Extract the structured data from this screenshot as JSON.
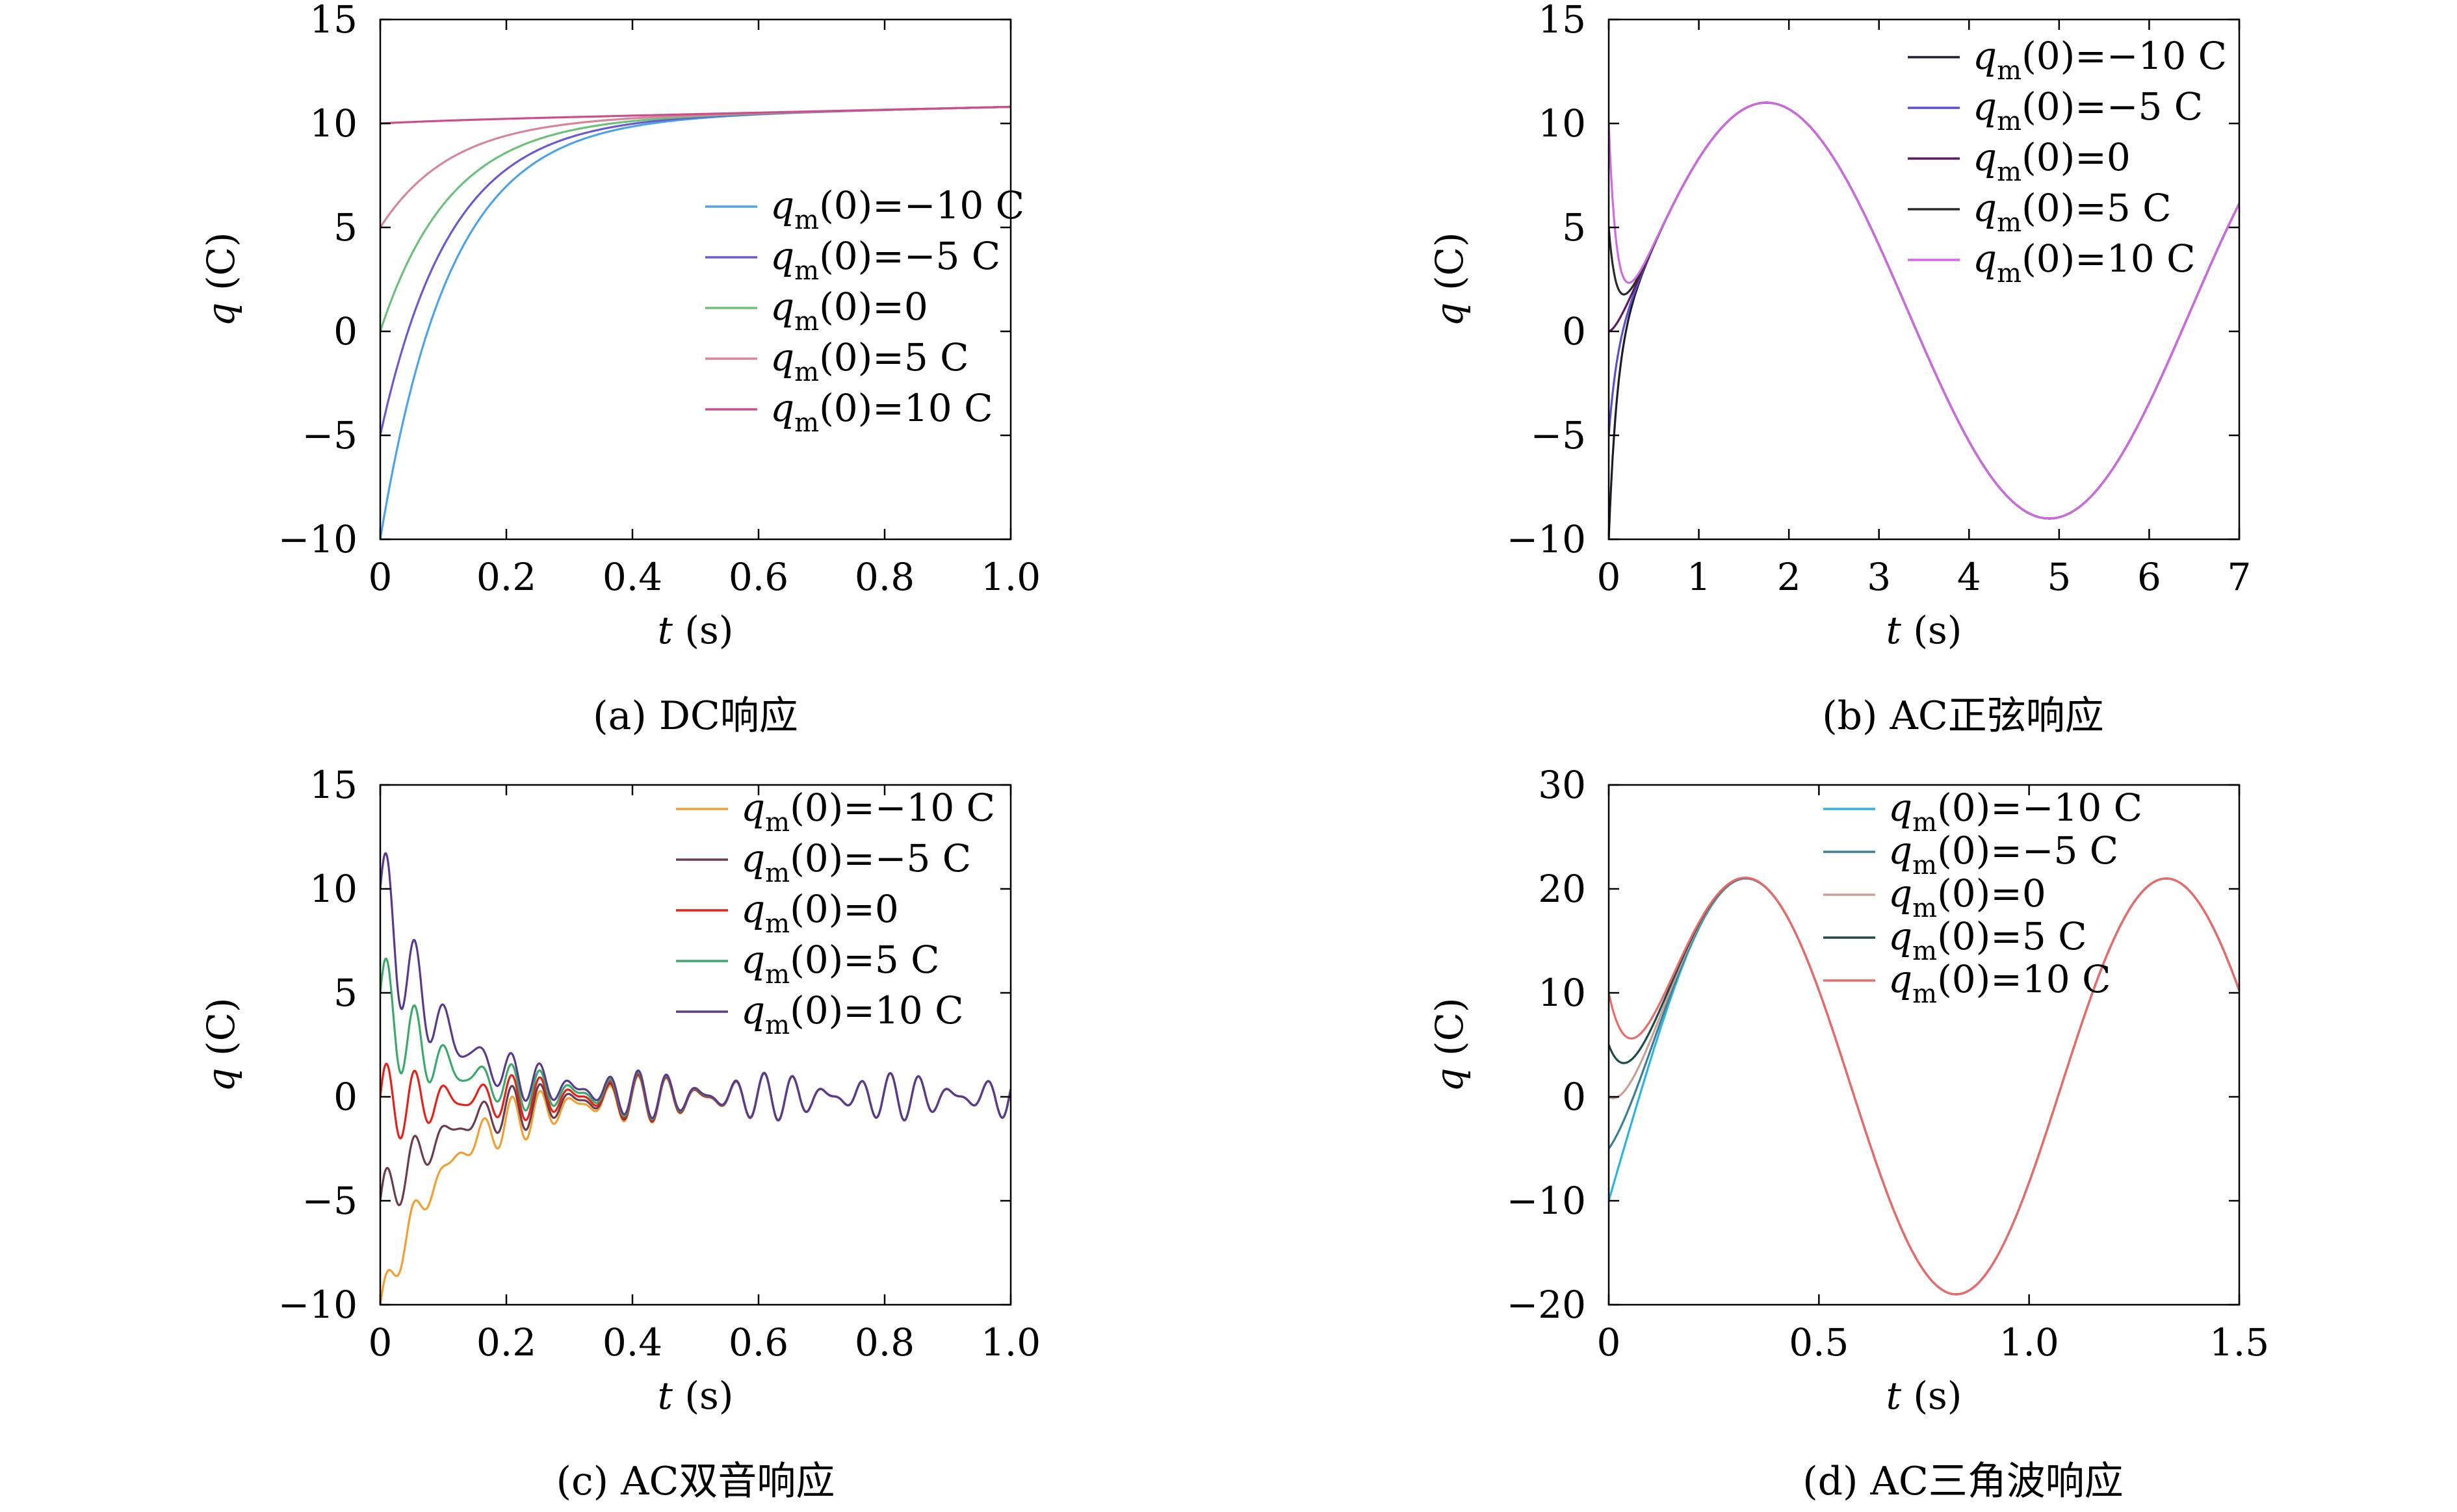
{
  "chart_data": [
    {
      "id": "a",
      "type": "line",
      "caption": "(a) DC响应",
      "xlabel_var": "t",
      "xlabel_unit": " (s)",
      "ylabel_var": "q",
      "ylabel_unit": " (C)",
      "xlim": [
        0,
        1.0
      ],
      "ylim": [
        -10,
        15
      ],
      "xticks": [
        0,
        0.2,
        0.4,
        0.6,
        0.8,
        1.0
      ],
      "xtick_labels": [
        "0",
        "0.2",
        "0.4",
        "0.6",
        "0.8",
        "1.0"
      ],
      "yticks": [
        -10,
        -5,
        0,
        5,
        10,
        15
      ],
      "ytick_labels": [
        "−10",
        "−5",
        "0",
        "5",
        "10",
        "15"
      ],
      "grid": false,
      "legend_position": "center-right",
      "model": "dc",
      "series": [
        {
          "name": "=−10 C",
          "q0": -10,
          "color": "#4ea3e6",
          "x": [
            0,
            0.05,
            0.1,
            0.15,
            0.2,
            0.3,
            0.4,
            0.6,
            0.8,
            1.0
          ],
          "y": [
            -10,
            -3.2,
            1.6,
            4.6,
            6.6,
            8.8,
            9.8,
            10.4,
            10.6,
            10.8
          ]
        },
        {
          "name": "=−5 C",
          "q0": -5,
          "color": "#6a5acd",
          "x": [
            0,
            0.05,
            0.1,
            0.15,
            0.2,
            0.3,
            0.4,
            0.6,
            0.8,
            1.0
          ],
          "y": [
            -5,
            0.4,
            4.0,
            6.4,
            7.9,
            9.5,
            10.1,
            10.5,
            10.6,
            10.8
          ]
        },
        {
          "name": "=0",
          "q0": 0,
          "color": "#6cc07a",
          "x": [
            0,
            0.05,
            0.1,
            0.15,
            0.2,
            0.3,
            0.4,
            0.6,
            0.8,
            1.0
          ],
          "y": [
            0,
            4.0,
            6.6,
            8.2,
            9.1,
            10.0,
            10.3,
            10.6,
            10.7,
            10.8
          ]
        },
        {
          "name": "=5 C",
          "q0": 5,
          "color": "#d4869a",
          "x": [
            0,
            0.05,
            0.1,
            0.15,
            0.2,
            0.3,
            0.4,
            0.6,
            0.8,
            1.0
          ],
          "y": [
            5,
            7.6,
            9.1,
            9.8,
            10.1,
            10.4,
            10.5,
            10.6,
            10.7,
            10.8
          ]
        },
        {
          "name": "=10 C",
          "q0": 10,
          "color": "#cc4f8c",
          "x": [
            0,
            0.2,
            0.4,
            0.6,
            0.8,
            1.0
          ],
          "y": [
            10.1,
            10.25,
            10.4,
            10.55,
            10.65,
            10.8
          ]
        }
      ]
    },
    {
      "id": "b",
      "type": "line",
      "caption": "(b) AC正弦响应",
      "xlabel_var": "t",
      "xlabel_unit": " (s)",
      "ylabel_var": "q",
      "ylabel_unit": " (C)",
      "xlim": [
        0,
        7
      ],
      "ylim": [
        -10,
        15
      ],
      "xticks": [
        0,
        1,
        2,
        3,
        4,
        5,
        6,
        7
      ],
      "xtick_labels": [
        "0",
        "1",
        "2",
        "3",
        "4",
        "5",
        "6",
        "7"
      ],
      "yticks": [
        -10,
        -5,
        0,
        5,
        10,
        15
      ],
      "ytick_labels": [
        "−10",
        "−5",
        "0",
        "5",
        "10",
        "15"
      ],
      "grid": false,
      "legend_position": "top-right",
      "model": "sine",
      "series": [
        {
          "name": "=−10 C",
          "q0": -10,
          "color": "#1c1c2a",
          "x": [
            0,
            0.1,
            0.25,
            0.5,
            1.0,
            1.75,
            2.5,
            3.5,
            4.85,
            6.0,
            7.0
          ],
          "y": [
            -10,
            -2.5,
            1.5,
            4.2,
            8.2,
            10.9,
            8.6,
            0.4,
            -9.1,
            -2.5,
            5.9
          ]
        },
        {
          "name": "=−5 C",
          "q0": -5,
          "color": "#5a4fcf",
          "x": [
            0,
            0.1,
            0.25,
            0.5,
            1.0,
            1.75,
            2.5,
            3.5,
            4.85,
            6.0,
            7.0
          ],
          "y": [
            -5,
            -0.2,
            2.2,
            4.3,
            8.2,
            10.9,
            8.6,
            0.4,
            -9.1,
            -2.5,
            5.9
          ]
        },
        {
          "name": "=0",
          "q0": 0,
          "color": "#5b1d5e",
          "x": [
            0,
            0.1,
            0.25,
            0.5,
            1.0,
            1.75,
            2.5,
            3.5,
            4.85,
            6.0,
            7.0
          ],
          "y": [
            0,
            1.9,
            2.8,
            4.4,
            8.2,
            10.9,
            8.6,
            0.4,
            -9.1,
            -2.5,
            5.9
          ]
        },
        {
          "name": "=5 C",
          "q0": 5,
          "color": "#2a2a2a",
          "x": [
            0,
            0.1,
            0.25,
            0.5,
            1.0,
            1.75,
            2.5,
            3.5,
            4.85,
            6.0,
            7.0
          ],
          "y": [
            5,
            3.1,
            3.3,
            4.6,
            8.2,
            10.9,
            8.6,
            0.4,
            -9.1,
            -2.5,
            5.9
          ]
        },
        {
          "name": "=10 C",
          "q0": 10,
          "color": "#d06ae0",
          "x": [
            0,
            0.1,
            0.25,
            0.5,
            1.0,
            1.75,
            2.5,
            3.5,
            4.85,
            6.0,
            7.0
          ],
          "y": [
            10,
            4.6,
            3.7,
            4.8,
            8.3,
            11.0,
            8.6,
            0.4,
            -9.1,
            -2.5,
            5.9
          ]
        }
      ]
    },
    {
      "id": "c",
      "type": "line",
      "caption": "(c) AC双音响应",
      "xlabel_var": "t",
      "xlabel_unit": " (s)",
      "ylabel_var": "q",
      "ylabel_unit": " (C)",
      "xlim": [
        0,
        1.0
      ],
      "ylim": [
        -10,
        15
      ],
      "xticks": [
        0,
        0.2,
        0.4,
        0.6,
        0.8,
        1.0
      ],
      "xtick_labels": [
        "0",
        "0.2",
        "0.4",
        "0.6",
        "0.8",
        "1.0"
      ],
      "yticks": [
        -10,
        -5,
        0,
        5,
        10,
        15
      ],
      "ytick_labels": [
        "−10",
        "−5",
        "0",
        "5",
        "10",
        "15"
      ],
      "grid": false,
      "legend_position": "top-right",
      "model": "twotone",
      "series": [
        {
          "name": "=−10 C",
          "q0": -10,
          "color": "#f0a030",
          "x": [
            0,
            0.02,
            0.05,
            0.1,
            0.2,
            0.3,
            0.4,
            0.6,
            0.8,
            1.0
          ],
          "y": [
            -10,
            -5.7,
            -6.8,
            -2.8,
            -1.0,
            -0.6,
            1.4,
            0.9,
            0.9,
            -1.2
          ]
        },
        {
          "name": "=−5 C",
          "q0": -5,
          "color": "#6b3b4e",
          "x": [
            0,
            0.02,
            0.05,
            0.1,
            0.2,
            0.3,
            0.4,
            0.6,
            0.8,
            1.0
          ],
          "y": [
            -5,
            -1.8,
            -3.4,
            -1.1,
            -0.3,
            -0.3,
            1.4,
            0.9,
            0.9,
            -1.2
          ]
        },
        {
          "name": "=0",
          "q0": 0,
          "color": "#e8201a",
          "x": [
            0,
            0.02,
            0.05,
            0.1,
            0.2,
            0.3,
            0.4,
            0.6,
            0.8,
            1.0
          ],
          "y": [
            0,
            2.2,
            0.0,
            0.6,
            0.5,
            0.1,
            1.4,
            0.9,
            0.9,
            -1.2
          ]
        },
        {
          "name": "=5 C",
          "q0": 5,
          "color": "#3aaa6a",
          "x": [
            0,
            0.02,
            0.05,
            0.1,
            0.2,
            0.3,
            0.4,
            0.6,
            0.8,
            1.0
          ],
          "y": [
            5,
            6.4,
            3.4,
            2.3,
            1.3,
            0.5,
            1.4,
            0.9,
            0.9,
            -1.2
          ]
        },
        {
          "name": "=10 C",
          "q0": 10,
          "color": "#5a3a8c",
          "x": [
            0,
            0.02,
            0.05,
            0.1,
            0.2,
            0.3,
            0.4,
            0.6,
            0.8,
            1.0
          ],
          "y": [
            10,
            10.6,
            6.8,
            4.0,
            2.1,
            0.8,
            1.4,
            0.9,
            0.9,
            -1.2
          ]
        }
      ]
    },
    {
      "id": "d",
      "type": "line",
      "caption": "(d) AC三角波响应",
      "xlabel_var": "t",
      "xlabel_unit": " (s)",
      "ylabel_var": "q",
      "ylabel_unit": " (C)",
      "xlim": [
        0,
        1.5
      ],
      "ylim": [
        -20,
        30
      ],
      "xticks": [
        0,
        0.5,
        1.0,
        1.5
      ],
      "xtick_labels": [
        "0",
        "0.5",
        "1.0",
        "1.5"
      ],
      "yticks": [
        -20,
        -10,
        0,
        10,
        20,
        30
      ],
      "ytick_labels": [
        "−20",
        "−10",
        "0",
        "10",
        "20",
        "30"
      ],
      "grid": false,
      "legend_position": "top-right",
      "model": "triangle",
      "series": [
        {
          "name": "=−10 C",
          "q0": -10,
          "color": "#2cb4e0",
          "x": [
            0,
            0.1,
            0.2,
            0.32,
            0.5,
            0.83,
            1.0,
            1.33,
            1.5
          ],
          "y": [
            -10,
            2.0,
            12.5,
            20.5,
            9.0,
            -19.3,
            -7.0,
            20.5,
            10.0
          ]
        },
        {
          "name": "=−5 C",
          "q0": -5,
          "color": "#3b7f96",
          "x": [
            0,
            0.1,
            0.2,
            0.32,
            0.5,
            0.83,
            1.0,
            1.33,
            1.5
          ],
          "y": [
            -5,
            4.6,
            13.6,
            20.8,
            9.0,
            -19.3,
            -7.0,
            20.5,
            10.0
          ]
        },
        {
          "name": "=0",
          "q0": 0,
          "color": "#c8a095",
          "x": [
            0,
            0.1,
            0.2,
            0.32,
            0.5,
            0.83,
            1.0,
            1.33,
            1.5
          ],
          "y": [
            0,
            7.0,
            14.8,
            21.0,
            9.0,
            -19.3,
            -7.0,
            20.5,
            10.0
          ]
        },
        {
          "name": "=5 C",
          "q0": 5,
          "color": "#1a4c4a",
          "x": [
            0,
            0.1,
            0.2,
            0.32,
            0.5,
            0.83,
            1.0,
            1.33,
            1.5
          ],
          "y": [
            5,
            9.5,
            16.0,
            21.3,
            9.0,
            -19.3,
            -7.0,
            20.5,
            10.0
          ]
        },
        {
          "name": "=10 C",
          "q0": 10,
          "color": "#ec6a6a",
          "x": [
            0,
            0.1,
            0.2,
            0.32,
            0.5,
            0.83,
            1.0,
            1.33,
            1.5
          ],
          "y": [
            10,
            8.0,
            14.8,
            21.4,
            9.0,
            -19.3,
            -7.0,
            20.5,
            10.0
          ]
        }
      ]
    }
  ]
}
